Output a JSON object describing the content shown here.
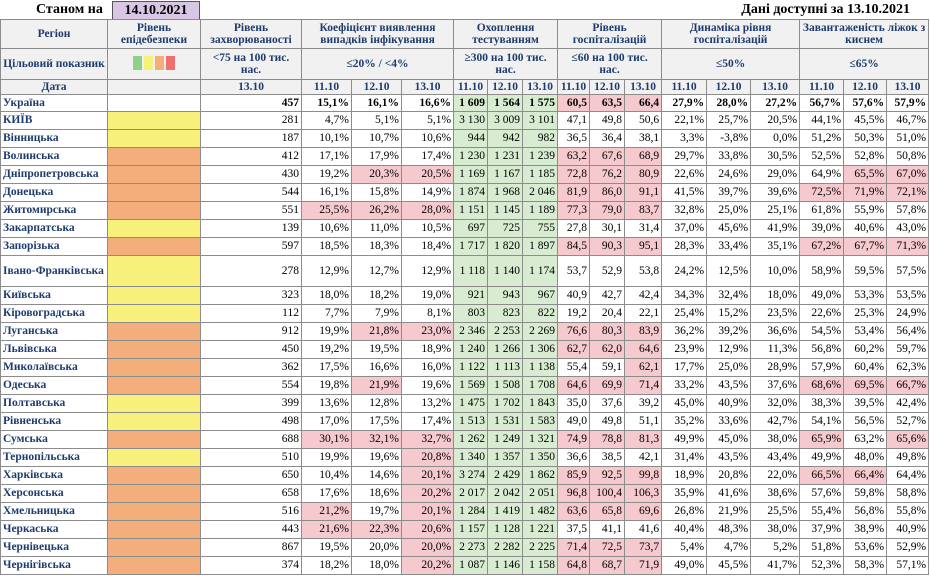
{
  "header": {
    "as_of_label": "Станом на",
    "as_of_date": "14.10.2021",
    "data_note": "Дані доступні за 13.10.2021"
  },
  "columns": {
    "region": "Регіон",
    "level": "Рівень епідебезпеки",
    "incidence": "Рівень захворюваності",
    "positivity": "Коефіцієнт виявлення випадків інфікування",
    "testing": "Охоплення тестуванням",
    "hosp": "Рівень госпіталізацій",
    "dyn": "Динаміка рівня госпіталізацій",
    "beds": "Завантаженість ліжок з киснем"
  },
  "target": {
    "label": "Цільовий показник",
    "incidence": "<75 на 100 тис. нас.",
    "positivity": "≤20% / <4%",
    "testing": "≥300 на 100 тис. нас.",
    "hosp": "≤60 на 100 тис. нас.",
    "dyn": "≤50%",
    "beds": "≤65%",
    "swatch_colors": [
      "#8fd18b",
      "#f7f17c",
      "#f4ae7b",
      "#ef6f6f"
    ]
  },
  "date_row": {
    "label": "Дата",
    "incidence": "13.10",
    "d1": "11.10",
    "d2": "12.10",
    "d3": "13.10"
  },
  "rows": [
    {
      "name": "Україна",
      "level": "",
      "inc": "457",
      "pos": [
        "15,1%",
        "16,1%",
        "16,6%"
      ],
      "test": [
        "1 609",
        "1 564",
        "1 575"
      ],
      "hosp": [
        "60,5",
        "63,5",
        "66,4"
      ],
      "dyn": [
        "27,9%",
        "28,0%",
        "27,2%"
      ],
      "beds": [
        "56,7%",
        "57,6%",
        "57,9%"
      ],
      "posC": [
        "",
        "",
        ""
      ],
      "testC": [
        "g",
        "g",
        "g"
      ],
      "hospC": [
        "r",
        "r",
        "r"
      ],
      "bedsC": [
        "",
        "",
        ""
      ]
    },
    {
      "name": "КИЇВ",
      "level": "yellow",
      "inc": "281",
      "pos": [
        "4,7%",
        "5,1%",
        "5,1%"
      ],
      "test": [
        "3 130",
        "3 009",
        "3 101"
      ],
      "hosp": [
        "47,1",
        "49,8",
        "50,6"
      ],
      "dyn": [
        "22,1%",
        "25,7%",
        "20,5%"
      ],
      "beds": [
        "44,1%",
        "45,5%",
        "46,7%"
      ],
      "posC": [
        "",
        "",
        ""
      ],
      "testC": [
        "g",
        "g",
        "g"
      ],
      "hospC": [
        "",
        "",
        ""
      ],
      "bedsC": [
        "",
        "",
        ""
      ]
    },
    {
      "name": "Вінницька",
      "level": "yellow",
      "inc": "187",
      "pos": [
        "10,1%",
        "10,7%",
        "10,6%"
      ],
      "test": [
        "944",
        "942",
        "982"
      ],
      "hosp": [
        "36,5",
        "36,4",
        "38,1"
      ],
      "dyn": [
        "3,3%",
        "-3,8%",
        "0,0%"
      ],
      "beds": [
        "51,2%",
        "50,3%",
        "51,0%"
      ],
      "posC": [
        "",
        "",
        ""
      ],
      "testC": [
        "g",
        "g",
        "g"
      ],
      "hospC": [
        "",
        "",
        ""
      ],
      "bedsC": [
        "",
        "",
        ""
      ]
    },
    {
      "name": "Волинська",
      "level": "orange",
      "inc": "412",
      "pos": [
        "17,1%",
        "17,9%",
        "17,4%"
      ],
      "test": [
        "1 230",
        "1 231",
        "1 239"
      ],
      "hosp": [
        "63,2",
        "67,6",
        "68,9"
      ],
      "dyn": [
        "29,7%",
        "33,8%",
        "30,5%"
      ],
      "beds": [
        "52,5%",
        "52,8%",
        "50,8%"
      ],
      "posC": [
        "",
        "",
        ""
      ],
      "testC": [
        "g",
        "g",
        "g"
      ],
      "hospC": [
        "r",
        "r",
        "r"
      ],
      "bedsC": [
        "",
        "",
        ""
      ]
    },
    {
      "name": "Дніпропетровська",
      "level": "orange",
      "inc": "430",
      "pos": [
        "19,2%",
        "20,3%",
        "20,5%"
      ],
      "test": [
        "1 169",
        "1 167",
        "1 185"
      ],
      "hosp": [
        "72,8",
        "76,2",
        "80,9"
      ],
      "dyn": [
        "22,6%",
        "24,6%",
        "29,0%"
      ],
      "beds": [
        "64,9%",
        "65,5%",
        "67,0%"
      ],
      "posC": [
        "",
        "r",
        "r"
      ],
      "testC": [
        "g",
        "g",
        "g"
      ],
      "hospC": [
        "r",
        "r",
        "r"
      ],
      "bedsC": [
        "",
        "r",
        "r"
      ]
    },
    {
      "name": "Донецька",
      "level": "orange",
      "inc": "544",
      "pos": [
        "16,1%",
        "15,8%",
        "14,9%"
      ],
      "test": [
        "1 874",
        "1 968",
        "2 046"
      ],
      "hosp": [
        "81,9",
        "86,0",
        "91,1"
      ],
      "dyn": [
        "41,5%",
        "39,7%",
        "39,6%"
      ],
      "beds": [
        "72,5%",
        "71,9%",
        "72,1%"
      ],
      "posC": [
        "",
        "",
        ""
      ],
      "testC": [
        "g",
        "g",
        "g"
      ],
      "hospC": [
        "r",
        "r",
        "r"
      ],
      "bedsC": [
        "r",
        "r",
        "r"
      ]
    },
    {
      "name": "Житомирська",
      "level": "orange",
      "inc": "551",
      "pos": [
        "25,5%",
        "26,2%",
        "28,0%"
      ],
      "test": [
        "1 151",
        "1 145",
        "1 189"
      ],
      "hosp": [
        "77,3",
        "79,0",
        "83,7"
      ],
      "dyn": [
        "32,8%",
        "25,0%",
        "25,1%"
      ],
      "beds": [
        "61,8%",
        "55,9%",
        "57,8%"
      ],
      "posC": [
        "r",
        "r",
        "r"
      ],
      "testC": [
        "g",
        "g",
        "g"
      ],
      "hospC": [
        "r",
        "r",
        "r"
      ],
      "bedsC": [
        "",
        "",
        ""
      ]
    },
    {
      "name": "Закарпатська",
      "level": "yellow",
      "inc": "139",
      "pos": [
        "10,6%",
        "11,0%",
        "10,5%"
      ],
      "test": [
        "697",
        "725",
        "755"
      ],
      "hosp": [
        "27,8",
        "30,1",
        "31,4"
      ],
      "dyn": [
        "37,0%",
        "45,6%",
        "41,9%"
      ],
      "beds": [
        "39,0%",
        "40,6%",
        "43,0%"
      ],
      "posC": [
        "",
        "",
        ""
      ],
      "testC": [
        "g",
        "g",
        "g"
      ],
      "hospC": [
        "",
        "",
        ""
      ],
      "bedsC": [
        "",
        "",
        ""
      ]
    },
    {
      "name": "Запорізька",
      "level": "orange",
      "inc": "597",
      "pos": [
        "18,5%",
        "18,3%",
        "18,4%"
      ],
      "test": [
        "1 717",
        "1 820",
        "1 897"
      ],
      "hosp": [
        "84,5",
        "90,3",
        "95,1"
      ],
      "dyn": [
        "28,3%",
        "33,4%",
        "35,1%"
      ],
      "beds": [
        "67,2%",
        "67,7%",
        "71,3%"
      ],
      "posC": [
        "",
        "",
        ""
      ],
      "testC": [
        "g",
        "g",
        "g"
      ],
      "hospC": [
        "r",
        "r",
        "r"
      ],
      "bedsC": [
        "r",
        "r",
        "r"
      ]
    },
    {
      "name": "Івано-Франківська",
      "level": "yellow",
      "inc": "278",
      "pos": [
        "12,9%",
        "12,7%",
        "12,9%"
      ],
      "test": [
        "1 118",
        "1 140",
        "1 174"
      ],
      "hosp": [
        "53,7",
        "52,9",
        "53,8"
      ],
      "dyn": [
        "24,2%",
        "12,5%",
        "10,0%"
      ],
      "beds": [
        "58,9%",
        "59,5%",
        "57,5%"
      ],
      "posC": [
        "",
        "",
        ""
      ],
      "testC": [
        "g",
        "g",
        "g"
      ],
      "hospC": [
        "",
        "",
        ""
      ],
      "bedsC": [
        "",
        "",
        ""
      ],
      "tall": true
    },
    {
      "name": "Київська",
      "level": "yellow",
      "inc": "323",
      "pos": [
        "18,0%",
        "18,2%",
        "19,0%"
      ],
      "test": [
        "921",
        "943",
        "967"
      ],
      "hosp": [
        "40,9",
        "42,7",
        "42,4"
      ],
      "dyn": [
        "34,3%",
        "32,4%",
        "18,0%"
      ],
      "beds": [
        "49,0%",
        "53,3%",
        "53,5%"
      ],
      "posC": [
        "",
        "",
        ""
      ],
      "testC": [
        "g",
        "g",
        "g"
      ],
      "hospC": [
        "",
        "",
        ""
      ],
      "bedsC": [
        "",
        "",
        ""
      ]
    },
    {
      "name": "Кіровоградська",
      "level": "yellow",
      "inc": "112",
      "pos": [
        "7,7%",
        "7,9%",
        "8,1%"
      ],
      "test": [
        "803",
        "823",
        "822"
      ],
      "hosp": [
        "19,2",
        "20,4",
        "22,1"
      ],
      "dyn": [
        "25,4%",
        "15,2%",
        "23,5%"
      ],
      "beds": [
        "22,6%",
        "25,3%",
        "24,9%"
      ],
      "posC": [
        "",
        "",
        ""
      ],
      "testC": [
        "g",
        "g",
        "g"
      ],
      "hospC": [
        "",
        "",
        ""
      ],
      "bedsC": [
        "",
        "",
        ""
      ]
    },
    {
      "name": "Луганська",
      "level": "orange",
      "inc": "912",
      "pos": [
        "19,9%",
        "21,8%",
        "23,0%"
      ],
      "test": [
        "2 346",
        "2 253",
        "2 269"
      ],
      "hosp": [
        "76,6",
        "80,3",
        "83,9"
      ],
      "dyn": [
        "36,2%",
        "39,2%",
        "36,6%"
      ],
      "beds": [
        "54,5%",
        "53,4%",
        "56,4%"
      ],
      "posC": [
        "",
        "r",
        "r"
      ],
      "testC": [
        "g",
        "g",
        "g"
      ],
      "hospC": [
        "r",
        "r",
        "r"
      ],
      "bedsC": [
        "",
        "",
        ""
      ]
    },
    {
      "name": "Львівська",
      "level": "orange",
      "inc": "450",
      "pos": [
        "19,2%",
        "19,5%",
        "18,9%"
      ],
      "test": [
        "1 240",
        "1 266",
        "1 306"
      ],
      "hosp": [
        "62,7",
        "62,0",
        "64,6"
      ],
      "dyn": [
        "23,9%",
        "12,9%",
        "11,3%"
      ],
      "beds": [
        "56,8%",
        "60,2%",
        "59,7%"
      ],
      "posC": [
        "",
        "",
        ""
      ],
      "testC": [
        "g",
        "g",
        "g"
      ],
      "hospC": [
        "r",
        "r",
        "r"
      ],
      "bedsC": [
        "",
        "",
        ""
      ]
    },
    {
      "name": "Миколаївська",
      "level": "orange",
      "inc": "362",
      "pos": [
        "17,5%",
        "16,6%",
        "16,0%"
      ],
      "test": [
        "1 122",
        "1 113",
        "1 138"
      ],
      "hosp": [
        "55,4",
        "59,1",
        "62,1"
      ],
      "dyn": [
        "17,7%",
        "25,0%",
        "28,9%"
      ],
      "beds": [
        "57,9%",
        "60,4%",
        "62,3%"
      ],
      "posC": [
        "",
        "",
        ""
      ],
      "testC": [
        "g",
        "g",
        "g"
      ],
      "hospC": [
        "",
        "",
        "r"
      ],
      "bedsC": [
        "",
        "",
        ""
      ]
    },
    {
      "name": "Одеська",
      "level": "orange",
      "inc": "554",
      "pos": [
        "19,8%",
        "21,9%",
        "19,6%"
      ],
      "test": [
        "1 569",
        "1 508",
        "1 708"
      ],
      "hosp": [
        "64,6",
        "69,9",
        "71,4"
      ],
      "dyn": [
        "33,2%",
        "43,5%",
        "37,6%"
      ],
      "beds": [
        "68,6%",
        "69,5%",
        "66,7%"
      ],
      "posC": [
        "",
        "r",
        ""
      ],
      "testC": [
        "g",
        "g",
        "g"
      ],
      "hospC": [
        "r",
        "r",
        "r"
      ],
      "bedsC": [
        "r",
        "r",
        "r"
      ]
    },
    {
      "name": "Полтавська",
      "level": "yellow",
      "inc": "399",
      "pos": [
        "13,6%",
        "12,8%",
        "13,2%"
      ],
      "test": [
        "1 475",
        "1 702",
        "1 843"
      ],
      "hosp": [
        "35,0",
        "37,6",
        "39,2"
      ],
      "dyn": [
        "45,0%",
        "40,9%",
        "32,0%"
      ],
      "beds": [
        "38,3%",
        "39,5%",
        "42,4%"
      ],
      "posC": [
        "",
        "",
        ""
      ],
      "testC": [
        "g",
        "g",
        "g"
      ],
      "hospC": [
        "",
        "",
        ""
      ],
      "bedsC": [
        "",
        "",
        ""
      ]
    },
    {
      "name": "Рівненська",
      "level": "yellow",
      "inc": "498",
      "pos": [
        "17,0%",
        "17,5%",
        "17,4%"
      ],
      "test": [
        "1 513",
        "1 531",
        "1 583"
      ],
      "hosp": [
        "49,0",
        "49,8",
        "51,1"
      ],
      "dyn": [
        "35,2%",
        "33,6%",
        "42,7%"
      ],
      "beds": [
        "54,1%",
        "56,5%",
        "52,7%"
      ],
      "posC": [
        "",
        "",
        ""
      ],
      "testC": [
        "g",
        "g",
        "g"
      ],
      "hospC": [
        "",
        "",
        ""
      ],
      "bedsC": [
        "",
        "",
        ""
      ]
    },
    {
      "name": "Сумська",
      "level": "orange",
      "inc": "688",
      "pos": [
        "30,1%",
        "32,1%",
        "32,7%"
      ],
      "test": [
        "1 262",
        "1 249",
        "1 321"
      ],
      "hosp": [
        "74,9",
        "78,8",
        "81,3"
      ],
      "dyn": [
        "49,9%",
        "45,0%",
        "38,0%"
      ],
      "beds": [
        "65,9%",
        "63,2%",
        "65,6%"
      ],
      "posC": [
        "r",
        "r",
        "r"
      ],
      "testC": [
        "g",
        "g",
        "g"
      ],
      "hospC": [
        "r",
        "r",
        "r"
      ],
      "bedsC": [
        "r",
        "",
        "r"
      ]
    },
    {
      "name": "Тернопільська",
      "level": "yellow",
      "inc": "510",
      "pos": [
        "19,9%",
        "19,6%",
        "20,8%"
      ],
      "test": [
        "1 340",
        "1 357",
        "1 350"
      ],
      "hosp": [
        "36,6",
        "38,5",
        "42,1"
      ],
      "dyn": [
        "31,4%",
        "43,5%",
        "43,4%"
      ],
      "beds": [
        "49,9%",
        "48,0%",
        "49,8%"
      ],
      "posC": [
        "",
        "",
        "r"
      ],
      "testC": [
        "g",
        "g",
        "g"
      ],
      "hospC": [
        "",
        "",
        ""
      ],
      "bedsC": [
        "",
        "",
        ""
      ]
    },
    {
      "name": "Харківська",
      "level": "orange",
      "inc": "650",
      "pos": [
        "10,4%",
        "14,6%",
        "20,1%"
      ],
      "test": [
        "3 274",
        "2 429",
        "1 862"
      ],
      "hosp": [
        "85,9",
        "92,5",
        "99,8"
      ],
      "dyn": [
        "18,9%",
        "20,8%",
        "22,0%"
      ],
      "beds": [
        "66,5%",
        "66,4%",
        "64,4%"
      ],
      "posC": [
        "",
        "",
        "r"
      ],
      "testC": [
        "g",
        "g",
        "g"
      ],
      "hospC": [
        "r",
        "r",
        "r"
      ],
      "bedsC": [
        "r",
        "r",
        ""
      ]
    },
    {
      "name": "Херсонська",
      "level": "orange",
      "inc": "658",
      "pos": [
        "17,6%",
        "18,6%",
        "20,2%"
      ],
      "test": [
        "2 017",
        "2 042",
        "2 051"
      ],
      "hosp": [
        "96,8",
        "100,4",
        "106,3"
      ],
      "dyn": [
        "35,9%",
        "41,6%",
        "38,6%"
      ],
      "beds": [
        "57,6%",
        "59,8%",
        "58,8%"
      ],
      "posC": [
        "",
        "",
        "r"
      ],
      "testC": [
        "g",
        "g",
        "g"
      ],
      "hospC": [
        "r",
        "r",
        "r"
      ],
      "bedsC": [
        "",
        "",
        ""
      ]
    },
    {
      "name": "Хмельницька",
      "level": "orange",
      "inc": "516",
      "pos": [
        "21,2%",
        "19,7%",
        "20,1%"
      ],
      "test": [
        "1 284",
        "1 419",
        "1 482"
      ],
      "hosp": [
        "63,6",
        "65,8",
        "69,6"
      ],
      "dyn": [
        "26,8%",
        "21,9%",
        "25,5%"
      ],
      "beds": [
        "55,4%",
        "56,8%",
        "55,8%"
      ],
      "posC": [
        "r",
        "",
        "r"
      ],
      "testC": [
        "g",
        "g",
        "g"
      ],
      "hospC": [
        "r",
        "r",
        "r"
      ],
      "bedsC": [
        "",
        "",
        ""
      ]
    },
    {
      "name": "Черкаська",
      "level": "orange",
      "inc": "443",
      "pos": [
        "21,6%",
        "22,3%",
        "20,6%"
      ],
      "test": [
        "1 157",
        "1 128",
        "1 221"
      ],
      "hosp": [
        "37,5",
        "41,1",
        "41,6"
      ],
      "dyn": [
        "40,4%",
        "48,3%",
        "38,0%"
      ],
      "beds": [
        "37,9%",
        "38,9%",
        "40,9%"
      ],
      "posC": [
        "r",
        "r",
        "r"
      ],
      "testC": [
        "g",
        "g",
        "g"
      ],
      "hospC": [
        "",
        "",
        ""
      ],
      "bedsC": [
        "",
        "",
        ""
      ]
    },
    {
      "name": "Чернівецька",
      "level": "orange",
      "inc": "867",
      "pos": [
        "19,5%",
        "20,0%",
        "20,0%"
      ],
      "test": [
        "2 273",
        "2 282",
        "2 225"
      ],
      "hosp": [
        "71,4",
        "72,5",
        "73,7"
      ],
      "dyn": [
        "5,4%",
        "4,7%",
        "5,2%"
      ],
      "beds": [
        "51,8%",
        "53,6%",
        "52,9%"
      ],
      "posC": [
        "",
        "",
        "r"
      ],
      "testC": [
        "g",
        "g",
        "g"
      ],
      "hospC": [
        "r",
        "r",
        "r"
      ],
      "bedsC": [
        "",
        "",
        ""
      ]
    },
    {
      "name": "Чернігівська",
      "level": "orange",
      "inc": "374",
      "pos": [
        "18,2%",
        "18,0%",
        "20,2%"
      ],
      "test": [
        "1 087",
        "1 146",
        "1 158"
      ],
      "hosp": [
        "64,8",
        "68,7",
        "71,9"
      ],
      "dyn": [
        "49,0%",
        "45,5%",
        "41,7%"
      ],
      "beds": [
        "52,3%",
        "58,3%",
        "57,1%"
      ],
      "posC": [
        "",
        "",
        "r"
      ],
      "testC": [
        "g",
        "g",
        "g"
      ],
      "hospC": [
        "r",
        "r",
        "r"
      ],
      "bedsC": [
        "",
        "",
        ""
      ]
    }
  ]
}
